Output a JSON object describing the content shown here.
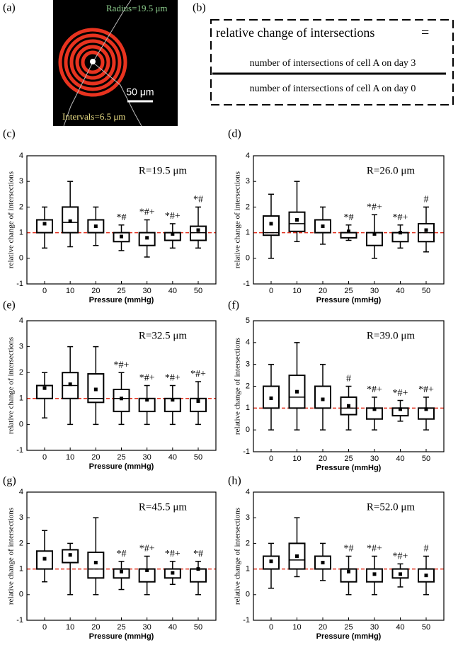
{
  "panel_a": {
    "label": "(a)",
    "radius_label": "Radius=19.5 μm",
    "interval_label": "Intervals=6.5 μm",
    "scale_label": "50 μm"
  },
  "panel_b": {
    "label": "(b)",
    "lhs": "relative  change of intersections",
    "equals": "=",
    "numerator": "number of intersections of cell A on day 3",
    "denominator": "number of intersections of cell A on day 0"
  },
  "chart_data": [
    {
      "type": "box",
      "label": "(c)",
      "title": "R=19.5 μm",
      "xlabel": "Pressure (mmHg)",
      "ylabel": "relative  change of intersections",
      "categories": [
        "0",
        "10",
        "20",
        "25",
        "30",
        "40",
        "50"
      ],
      "whisker_low": [
        0.4,
        0.45,
        0.5,
        0.3,
        0.05,
        0.4,
        0.4
      ],
      "q1": [
        1.0,
        1.0,
        1.0,
        0.65,
        0.5,
        0.7,
        0.7
      ],
      "median": [
        1.0,
        1.4,
        1.0,
        1.0,
        1.0,
        1.0,
        1.0
      ],
      "q3": [
        1.5,
        2.0,
        1.5,
        1.0,
        1.0,
        1.0,
        1.25
      ],
      "whisker_high": [
        2.0,
        3.0,
        2.0,
        1.3,
        1.5,
        1.35,
        2.0
      ],
      "mean": [
        1.35,
        1.45,
        1.25,
        0.85,
        0.8,
        0.95,
        1.1
      ],
      "annotations": [
        null,
        null,
        null,
        "*#",
        "*#+",
        "*#+",
        "*#"
      ],
      "reference_line": 1,
      "box_color": "#000000",
      "reference_color": "#e0301e",
      "ylim": [
        -1,
        4
      ],
      "yticks": [
        -1,
        0,
        1,
        2,
        3,
        4
      ]
    },
    {
      "type": "box",
      "label": "(d)",
      "title": "R=26.0 μm",
      "xlabel": "Pressure (mmHg)",
      "ylabel": "relative  change of intersections",
      "categories": [
        "0",
        "10",
        "20",
        "25",
        "30",
        "40",
        "50"
      ],
      "whisker_low": [
        0,
        0.65,
        0.55,
        0.7,
        0,
        0.4,
        0.25
      ],
      "q1": [
        0.9,
        1.05,
        1.0,
        0.8,
        0.5,
        0.65,
        0.65
      ],
      "median": [
        1.0,
        1.35,
        1.0,
        1.0,
        1.0,
        1.0,
        1.0
      ],
      "q3": [
        1.65,
        1.8,
        1.5,
        1.0,
        1.0,
        1.0,
        1.35
      ],
      "whisker_high": [
        2.5,
        3.0,
        2.0,
        1.3,
        1.7,
        1.3,
        2.0
      ],
      "mean": [
        1.35,
        1.5,
        1.25,
        1.05,
        0.95,
        1.0,
        1.1
      ],
      "annotations": [
        null,
        null,
        null,
        "*#",
        "*#+",
        "*#+",
        "#"
      ],
      "reference_line": 1,
      "box_color": "#000000",
      "reference_color": "#e0301e",
      "ylim": [
        -1,
        4
      ],
      "yticks": [
        -1,
        0,
        1,
        2,
        3,
        4
      ]
    },
    {
      "type": "box",
      "label": "(e)",
      "title": "R=32.5 μm",
      "xlabel": "Pressure (mmHg)",
      "ylabel": "relative change of intersections",
      "categories": [
        "0",
        "10",
        "20",
        "25",
        "30",
        "40",
        "50"
      ],
      "whisker_low": [
        0.25,
        0,
        0,
        0,
        0,
        0,
        0
      ],
      "q1": [
        1.0,
        1.0,
        0.85,
        0.5,
        0.5,
        0.5,
        0.5
      ],
      "median": [
        1.0,
        1.5,
        1.0,
        1.0,
        1.0,
        1.0,
        1.0
      ],
      "q3": [
        1.5,
        2.0,
        1.95,
        1.35,
        1.0,
        1.0,
        1.0
      ],
      "whisker_high": [
        2.0,
        3.0,
        3.0,
        2.0,
        1.5,
        1.5,
        1.65
      ],
      "mean": [
        1.4,
        1.55,
        1.35,
        1.0,
        0.95,
        0.95,
        0.9
      ],
      "annotations": [
        null,
        null,
        null,
        "*#+",
        "*#+",
        "*#+",
        "*#+"
      ],
      "reference_line": 1,
      "box_color": "#000000",
      "reference_color": "#e0301e",
      "ylim": [
        -1,
        4
      ],
      "yticks": [
        -1,
        0,
        1,
        2,
        3,
        4
      ]
    },
    {
      "type": "box",
      "label": "(f)",
      "title": "R=39.0 μm",
      "xlabel": "Pressure (mmHg)",
      "ylabel": "relative change of intersections",
      "categories": [
        "0",
        "10",
        "20",
        "25",
        "30",
        "40",
        "50"
      ],
      "whisker_low": [
        0,
        0,
        0,
        0,
        0,
        0.4,
        0
      ],
      "q1": [
        1.0,
        1.0,
        1.0,
        0.7,
        0.5,
        0.65,
        0.5
      ],
      "median": [
        1.0,
        1.5,
        1.0,
        1.0,
        1.0,
        1.0,
        1.0
      ],
      "q3": [
        2.0,
        2.5,
        2.0,
        1.5,
        1.0,
        1.0,
        1.0
      ],
      "whisker_high": [
        3.0,
        4.0,
        3.0,
        2.0,
        1.5,
        1.35,
        1.5
      ],
      "mean": [
        1.45,
        1.75,
        1.4,
        1.1,
        0.95,
        0.95,
        0.95
      ],
      "annotations": [
        null,
        null,
        null,
        "#",
        "*#+",
        "*#+",
        "*#+"
      ],
      "reference_line": 1,
      "box_color": "#000000",
      "reference_color": "#e0301e",
      "ylim": [
        -1,
        5
      ],
      "yticks": [
        -1,
        0,
        1,
        2,
        3,
        4,
        5
      ]
    },
    {
      "type": "box",
      "label": "(g)",
      "title": "R=45.5 μm",
      "xlabel": "Pressure (mmHg)",
      "ylabel": "relative change of intersections",
      "categories": [
        "0",
        "10",
        "20",
        "25",
        "30",
        "40",
        "50"
      ],
      "whisker_low": [
        0.5,
        0,
        0,
        0.2,
        0,
        0.4,
        0
      ],
      "q1": [
        1.0,
        1.25,
        0.65,
        0.65,
        0.5,
        0.65,
        0.5
      ],
      "median": [
        1.0,
        1.25,
        1.0,
        1.0,
        1.0,
        1.0,
        1.0
      ],
      "q3": [
        1.7,
        1.75,
        1.65,
        1.0,
        1.0,
        1.0,
        1.0
      ],
      "whisker_high": [
        2.5,
        2.0,
        3.0,
        1.3,
        1.5,
        1.3,
        1.3
      ],
      "mean": [
        1.4,
        1.55,
        1.25,
        0.9,
        0.95,
        0.85,
        1.0
      ],
      "annotations": [
        null,
        null,
        null,
        "*#",
        "*#+",
        "*#+",
        "*#"
      ],
      "reference_line": 1,
      "box_color": "#000000",
      "reference_color": "#e0301e",
      "ylim": [
        -1,
        4
      ],
      "yticks": [
        -1,
        0,
        1,
        2,
        3,
        4
      ]
    },
    {
      "type": "box",
      "label": "(h)",
      "title": "R=52.0 μm",
      "xlabel": "Pressure (mmHg)",
      "ylabel": "relative  change of intersections",
      "categories": [
        "0",
        "10",
        "20",
        "25",
        "30",
        "40",
        "50"
      ],
      "whisker_low": [
        0.25,
        0.7,
        0.55,
        0,
        0,
        0.3,
        0
      ],
      "q1": [
        1.0,
        1.0,
        1.0,
        0.5,
        0.5,
        0.65,
        0.5
      ],
      "median": [
        1.0,
        1.35,
        1.0,
        1.0,
        1.0,
        1.0,
        1.0
      ],
      "q3": [
        1.5,
        2.0,
        1.5,
        1.0,
        1.0,
        1.0,
        1.0
      ],
      "whisker_high": [
        2.0,
        3.0,
        2.0,
        1.5,
        1.5,
        1.2,
        1.5
      ],
      "mean": [
        1.3,
        1.5,
        1.25,
        0.9,
        0.8,
        0.8,
        0.75
      ],
      "annotations": [
        null,
        null,
        null,
        "*#",
        "*#+",
        "*#+",
        "#"
      ],
      "reference_line": 1,
      "box_color": "#000000",
      "reference_color": "#e0301e",
      "ylim": [
        -1,
        4
      ],
      "yticks": [
        -1,
        0,
        1,
        2,
        3,
        4
      ]
    }
  ]
}
